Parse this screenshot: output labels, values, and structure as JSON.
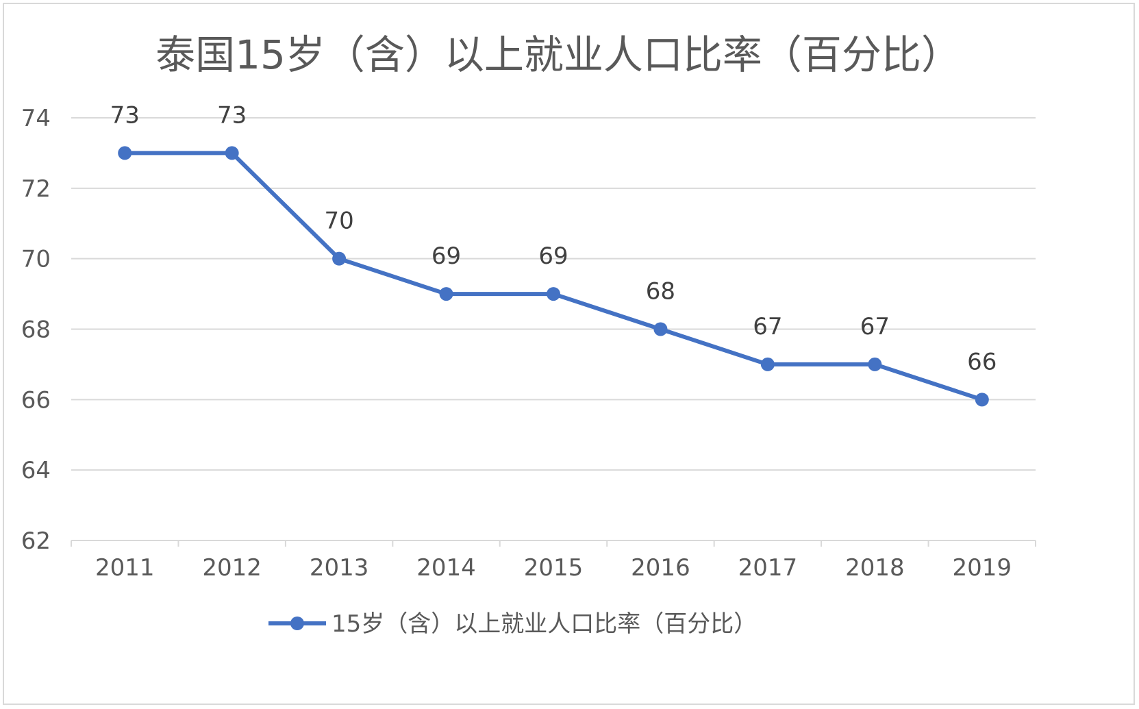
{
  "chart_data": {
    "type": "line",
    "title": "泰国15岁（含）以上就业人口比率（百分比）",
    "xlabel": "",
    "ylabel": "",
    "categories": [
      "2011",
      "2012",
      "2013",
      "2014",
      "2015",
      "2016",
      "2017",
      "2018",
      "2019"
    ],
    "series": [
      {
        "name": "15岁（含）以上就业人口比率（百分比）",
        "values": [
          73,
          73,
          70,
          69,
          69,
          68,
          67,
          67,
          66
        ],
        "color": "#4472c4"
      }
    ],
    "ylim": [
      62,
      74
    ],
    "yticks": [
      "62",
      "64",
      "66",
      "68",
      "70",
      "72",
      "74"
    ],
    "grid": true,
    "data_labels": true,
    "legend": "bottom"
  }
}
